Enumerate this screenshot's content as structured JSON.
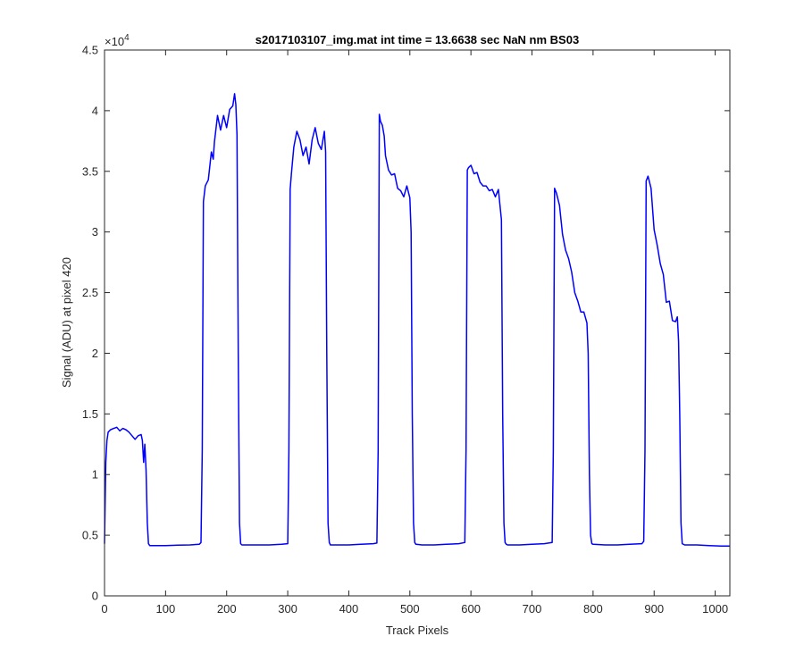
{
  "chart_data": {
    "type": "line",
    "title": "s2017103107_img.mat int time = 13.6638 sec  NaN nm BS03",
    "xlabel": "Track Pixels",
    "ylabel": "Signal (ADU) at pixel 420",
    "exponent_label": "×10",
    "exponent_power": "4",
    "xlim": [
      0,
      1024
    ],
    "ylim": [
      0,
      45000
    ],
    "xticks": [
      0,
      100,
      200,
      300,
      400,
      500,
      600,
      700,
      800,
      900,
      1000
    ],
    "xtick_labels": [
      "0",
      "100",
      "200",
      "300",
      "400",
      "500",
      "600",
      "700",
      "800",
      "900",
      "1000"
    ],
    "yticks": [
      0,
      5000,
      10000,
      15000,
      20000,
      25000,
      30000,
      35000,
      40000,
      45000
    ],
    "ytick_labels": [
      "0",
      "0.5",
      "1",
      "1.5",
      "2",
      "2.5",
      "3",
      "3.5",
      "4",
      "4.5"
    ],
    "grid": false,
    "series": [
      {
        "color": "#0000ff",
        "x": [
          0,
          2,
          4,
          6,
          10,
          15,
          20,
          25,
          30,
          35,
          40,
          45,
          50,
          55,
          60,
          62,
          64,
          66,
          68,
          70,
          72,
          74,
          76,
          80,
          100,
          120,
          140,
          155,
          158,
          160,
          162,
          165,
          170,
          175,
          178,
          180,
          185,
          190,
          195,
          200,
          205,
          210,
          213,
          215,
          217,
          219,
          221,
          223,
          225,
          230,
          250,
          270,
          290,
          300,
          302,
          304,
          306,
          310,
          315,
          320,
          325,
          330,
          335,
          340,
          345,
          350,
          355,
          360,
          362,
          364,
          366,
          368,
          370,
          380,
          400,
          420,
          440,
          446,
          448,
          450,
          452,
          455,
          458,
          460,
          465,
          470,
          475,
          480,
          485,
          490,
          495,
          500,
          502,
          504,
          506,
          508,
          510,
          520,
          540,
          560,
          580,
          590,
          592,
          594,
          596,
          600,
          605,
          610,
          615,
          620,
          625,
          630,
          635,
          640,
          645,
          650,
          652,
          654,
          656,
          658,
          660,
          680,
          700,
          720,
          733,
          735,
          737,
          740,
          745,
          750,
          755,
          760,
          765,
          770,
          775,
          780,
          785,
          790,
          792,
          794,
          796,
          798,
          800,
          820,
          840,
          860,
          880,
          883,
          885,
          887,
          890,
          895,
          900,
          905,
          910,
          915,
          920,
          925,
          930,
          935,
          938,
          940,
          942,
          944,
          946,
          950,
          970,
          990,
          1010,
          1024
        ],
        "y": [
          4300,
          11000,
          12800,
          13500,
          13700,
          13800,
          13900,
          13600,
          13800,
          13700,
          13500,
          13200,
          12900,
          13200,
          13300,
          12800,
          11000,
          12500,
          10400,
          6000,
          4300,
          4150,
          4150,
          4150,
          4150,
          4180,
          4200,
          4250,
          4400,
          12000,
          32500,
          33800,
          34300,
          36600,
          36000,
          37400,
          39600,
          38400,
          39600,
          38600,
          40100,
          40400,
          41400,
          40500,
          38000,
          20000,
          6000,
          4300,
          4200,
          4200,
          4200,
          4200,
          4250,
          4300,
          12000,
          33500,
          34800,
          37000,
          38300,
          37600,
          36300,
          37000,
          35600,
          37600,
          38600,
          37300,
          36800,
          38300,
          36600,
          20000,
          6000,
          4400,
          4200,
          4200,
          4200,
          4250,
          4300,
          4350,
          12000,
          39700,
          39100,
          38800,
          37900,
          36300,
          35100,
          34700,
          34800,
          33600,
          33400,
          32900,
          33800,
          32800,
          30000,
          15000,
          6000,
          4400,
          4250,
          4200,
          4200,
          4250,
          4300,
          4400,
          12000,
          35100,
          35300,
          35500,
          34800,
          34900,
          34100,
          33800,
          33800,
          33400,
          33500,
          32900,
          33500,
          31000,
          15000,
          6000,
          4400,
          4250,
          4200,
          4200,
          4250,
          4300,
          4400,
          12000,
          33600,
          33200,
          32200,
          29800,
          28500,
          27800,
          26700,
          25000,
          24300,
          23400,
          23400,
          22500,
          20000,
          10000,
          5000,
          4300,
          4250,
          4200,
          4200,
          4250,
          4300,
          4500,
          12000,
          34200,
          34600,
          33600,
          30200,
          28900,
          27400,
          26500,
          24200,
          24300,
          22700,
          22600,
          23000,
          21000,
          15000,
          6000,
          4300,
          4200,
          4200,
          4150,
          4100,
          4100
        ]
      }
    ]
  }
}
